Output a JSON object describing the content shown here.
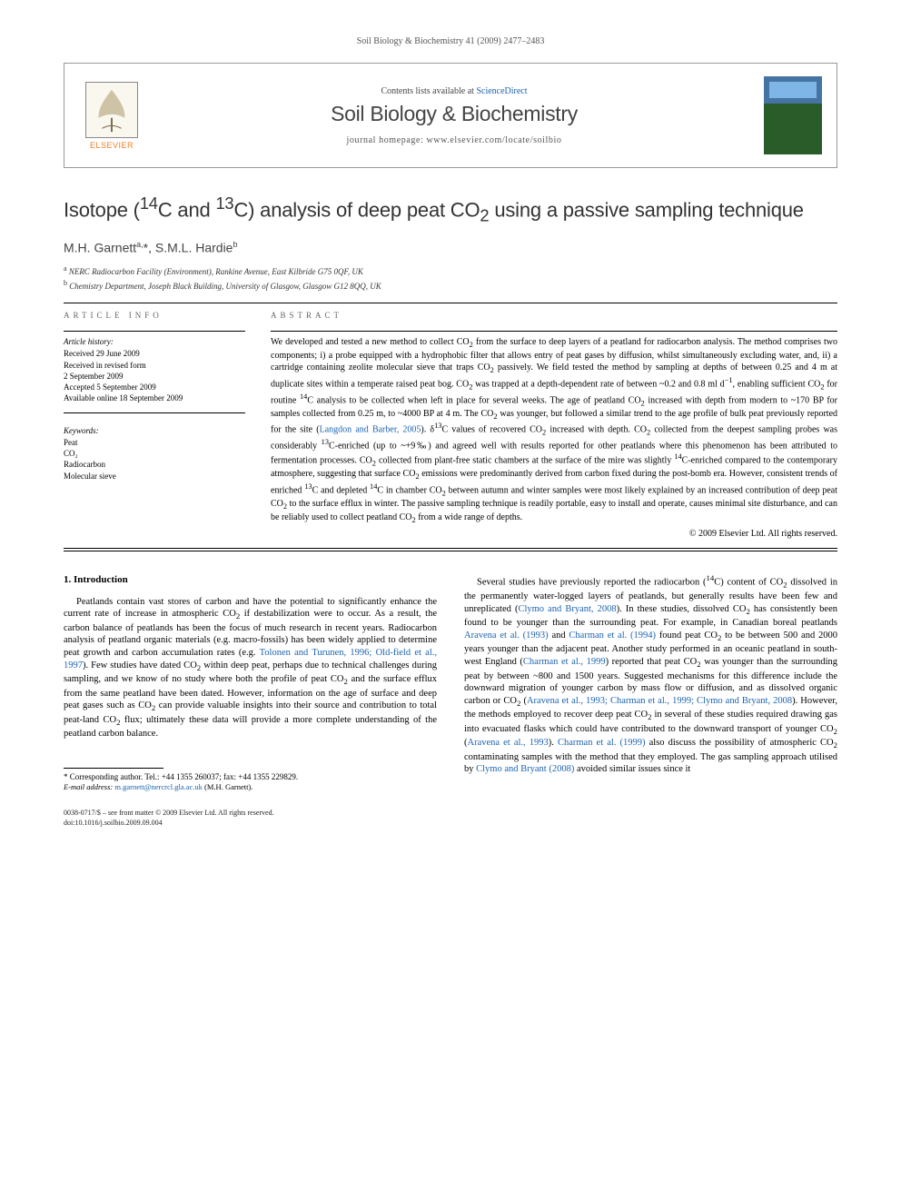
{
  "page_header": "Soil Biology & Biochemistry 41 (2009) 2477–2483",
  "topbox": {
    "publisher_name": "ELSEVIER",
    "contents_prefix": "Contents lists available at ",
    "contents_link": "ScienceDirect",
    "journal_name": "Soil Biology & Biochemistry",
    "homepage_label": "journal homepage: www.elsevier.com/locate/soilbio"
  },
  "article": {
    "title_html": "Isotope (<sup>14</sup>C and <sup>13</sup>C) analysis of deep peat CO<sub>2</sub> using a passive sampling technique",
    "authors_html": "M.H. Garnett<sup>a,</sup>*, S.M.L. Hardie<sup>b</sup>",
    "affiliations": [
      {
        "sup": "a",
        "text": "NERC Radiocarbon Facility (Environment), Rankine Avenue, East Kilbride G75 0QF, UK"
      },
      {
        "sup": "b",
        "text": "Chemistry Department, Joseph Black Building, University of Glasgow, Glasgow G12 8QQ, UK"
      }
    ]
  },
  "info": {
    "head": "ARTICLE INFO",
    "history_head": "Article history:",
    "history": [
      "Received 29 June 2009",
      "Received in revised form",
      "2 September 2009",
      "Accepted 5 September 2009",
      "Available online 18 September 2009"
    ],
    "keywords_head": "Keywords:",
    "keywords": [
      "Peat",
      "CO₂",
      "Radiocarbon",
      "Molecular sieve"
    ]
  },
  "abstract": {
    "head": "ABSTRACT",
    "text_html": "We developed and tested a new method to collect CO<sub>2</sub> from the surface to deep layers of a peatland for radiocarbon analysis. The method comprises two components; i) a probe equipped with a hydrophobic filter that allows entry of peat gases by diffusion, whilst simultaneously excluding water, and, ii) a cartridge containing zeolite molecular sieve that traps CO<sub>2</sub> passively. We field tested the method by sampling at depths of between 0.25 and 4 m at duplicate sites within a temperate raised peat bog. CO<sub>2</sub> was trapped at a depth-dependent rate of between ~0.2 and 0.8 ml d<sup>−1</sup>, enabling sufficient CO<sub>2</sub> for routine <sup>14</sup>C analysis to be collected when left in place for several weeks. The age of peatland CO<sub>2</sub> increased with depth from modern to ~170 BP for samples collected from 0.25 m, to ~4000 BP at 4 m. The CO<sub>2</sub> was younger, but followed a similar trend to the age profile of bulk peat previously reported for the site (<a href='#'>Langdon and Barber, 2005</a>). δ<sup>13</sup>C values of recovered CO<sub>2</sub> increased with depth. CO<sub>2</sub> collected from the deepest sampling probes was considerably <sup>13</sup>C-enriched (up to ~+9‰) and agreed well with results reported for other peatlands where this phenomenon has been attributed to fermentation processes. CO<sub>2</sub> collected from plant-free static chambers at the surface of the mire was slightly <sup>14</sup>C-enriched compared to the contemporary atmosphere, suggesting that surface CO<sub>2</sub> emissions were predominantly derived from carbon fixed during the post-bomb era. However, consistent trends of enriched <sup>13</sup>C and depleted <sup>14</sup>C in chamber CO<sub>2</sub> between autumn and winter samples were most likely explained by an increased contribution of deep peat CO<sub>2</sub> to the surface efflux in winter. The passive sampling technique is readily portable, easy to install and operate, causes minimal site disturbance, and can be reliably used to collect peatland CO<sub>2</sub> from a wide range of depths.",
    "copyright": "© 2009 Elsevier Ltd. All rights reserved."
  },
  "body": {
    "section_heading": "1. Introduction",
    "col1_html": "Peatlands contain vast stores of carbon and have the potential to significantly enhance the current rate of increase in atmospheric CO<sub>2</sub> if destabilization were to occur. As a result, the carbon balance of peatlands has been the focus of much research in recent years. Radiocarbon analysis of peatland organic materials (e.g. macro-fossils) has been widely applied to determine peat growth and carbon accumulation rates (e.g. <a href='#'>Tolonen and Turunen, 1996; Old-field et al., 1997</a>). Few studies have dated CO<sub>2</sub> within deep peat, perhaps due to technical challenges during sampling, and we know of no study where both the profile of peat CO<sub>2</sub> and the surface efflux from the same peatland have been dated. However, information on the age of surface and deep peat gases such as CO<sub>2</sub> can provide valuable insights into their source and contribution to total peat-land CO<sub>2</sub> flux; ultimately these data will provide a more complete understanding of the peatland carbon balance.",
    "col2_html": "Several studies have previously reported the radiocarbon (<sup>14</sup>C) content of CO<sub>2</sub> dissolved in the permanently water-logged layers of peatlands, but generally results have been few and unreplicated (<a href='#'>Clymo and Bryant, 2008</a>). In these studies, dissolved CO<sub>2</sub> has consistently been found to be younger than the surrounding peat. For example, in Canadian boreal peatlands <a href='#'>Aravena et al. (1993)</a> and <a href='#'>Charman et al. (1994)</a> found peat CO<sub>2</sub> to be between 500 and 2000 years younger than the adjacent peat. Another study performed in an oceanic peatland in south-west England (<a href='#'>Charman et al., 1999</a>) reported that peat CO<sub>2</sub> was younger than the surrounding peat by between ~800 and 1500 years. Suggested mechanisms for this difference include the downward migration of younger carbon by mass flow or diffusion, and as dissolved organic carbon or CO<sub>2</sub> (<a href='#'>Aravena et al., 1993; Charman et al., 1999; Clymo and Bryant, 2008</a>). However, the methods employed to recover deep peat CO<sub>2</sub> in several of these studies required drawing gas into evacuated flasks which could have contributed to the downward transport of younger CO<sub>2</sub> (<a href='#'>Aravena et al., 1993</a>). <a href='#'>Charman et al. (1999)</a> also discuss the possibility of atmospheric CO<sub>2</sub> contaminating samples with the method that they employed. The gas sampling approach utilised by <a href='#'>Clymo and Bryant (2008)</a> avoided similar issues since it"
  },
  "footnote": {
    "corr_label": "* Corresponding author. Tel.: +44 1355 260037; fax: +44 1355 229829.",
    "email_label": "E-mail address:",
    "email": "m.garnett@nercrcl.gla.ac.uk",
    "email_suffix": "(M.H. Garnett)."
  },
  "bottom": {
    "line1": "0038-0717/$ – see front matter © 2009 Elsevier Ltd. All rights reserved.",
    "line2": "doi:10.1016/j.soilbio.2009.09.004"
  },
  "colors": {
    "link": "#1b63b0",
    "publisher_orange": "#ef7d1d",
    "text": "#000000",
    "muted": "#555555"
  }
}
